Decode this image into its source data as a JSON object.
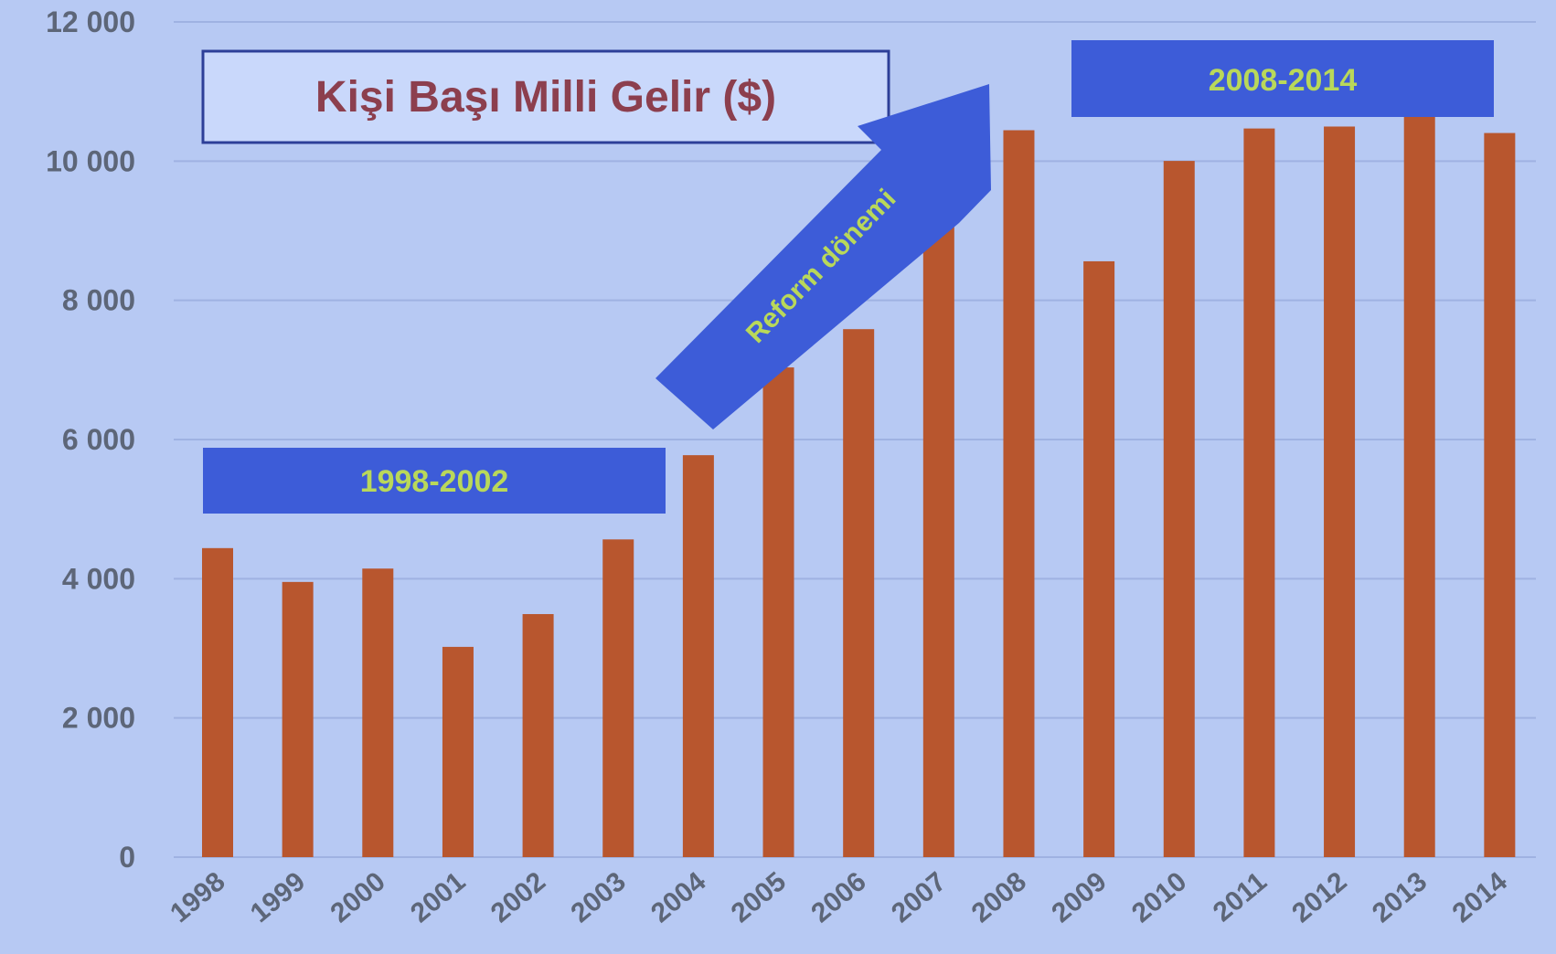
{
  "colors": {
    "background": "#b7c9f3",
    "bar": "#b8562e",
    "gridline": "#9fb2e2",
    "axis_text": "#5d6678",
    "title_text": "#8c3f4e",
    "banner_fill": "#3d5cd8",
    "banner_text": "#b9d85a",
    "title_box_fill": "#c9d8fb",
    "title_box_border": "#2d3f98"
  },
  "annotations": {
    "title_box": "Kişi Başı Milli Gelir ($)",
    "banner_left": "1998-2002",
    "banner_right": "2008-2014",
    "arrow_label": "Reform dönemi"
  },
  "chart_data": {
    "type": "bar",
    "title": "Kişi Başı Milli Gelir ($)",
    "xlabel": "",
    "ylabel": "",
    "categories": [
      "1998",
      "1999",
      "2000",
      "2001",
      "2002",
      "2003",
      "2004",
      "2005",
      "2006",
      "2007",
      "2008",
      "2009",
      "2010",
      "2011",
      "2012",
      "2013",
      "2014"
    ],
    "values": [
      4440,
      3954,
      4146,
      3021,
      3492,
      4565,
      5775,
      7036,
      7586,
      9247,
      10444,
      8561,
      10003,
      10469,
      10497,
      10822,
      10404
    ],
    "ylim": [
      0,
      12000
    ],
    "yticks": [
      0,
      2000,
      4000,
      6000,
      8000,
      10000,
      12000
    ],
    "ytick_labels": [
      "0",
      "2 000",
      "4 000",
      "6 000",
      "8 000",
      "10 000",
      "12 000"
    ],
    "grid": true,
    "legend": "none"
  }
}
